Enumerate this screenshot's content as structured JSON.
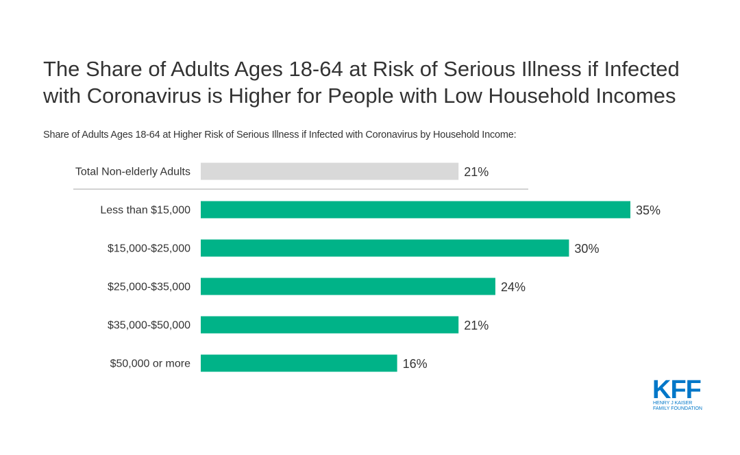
{
  "title": "The Share of  Adults Ages 18-64 at Risk of Serious Illness if Infected with Coronavirus is Higher for People with Low Household Incomes",
  "subtitle": "Share of Adults Ages 18-64 at Higher Risk of Serious Illness if Infected with Coronavirus by Household Income:",
  "colors": {
    "total_bar": "#d9d9d9",
    "income_bar": "#00b388",
    "text": "#333333",
    "divider": "#a6a6a6",
    "logo": "#0077c8"
  },
  "logo": {
    "mark": "KFF",
    "line1": "HENRY J KAISER",
    "line2": "FAMILY FOUNDATION"
  },
  "chart_data": {
    "type": "bar",
    "orientation": "horizontal",
    "categories": [
      "Total Non-elderly Adults",
      "Less than $15,000",
      "$15,000-$25,000",
      "$25,000-$35,000",
      "$35,000-$50,000",
      "$50,000 or more"
    ],
    "values": [
      21,
      35,
      30,
      24,
      21,
      16
    ],
    "data_labels": [
      "21%",
      "35%",
      "30%",
      "24%",
      "21%",
      "16%"
    ],
    "bar_colors": [
      "#d9d9d9",
      "#00b388",
      "#00b388",
      "#00b388",
      "#00b388",
      "#00b388"
    ],
    "unit": "%",
    "xlim": [
      0,
      35
    ],
    "grid": false,
    "legend": "none"
  }
}
